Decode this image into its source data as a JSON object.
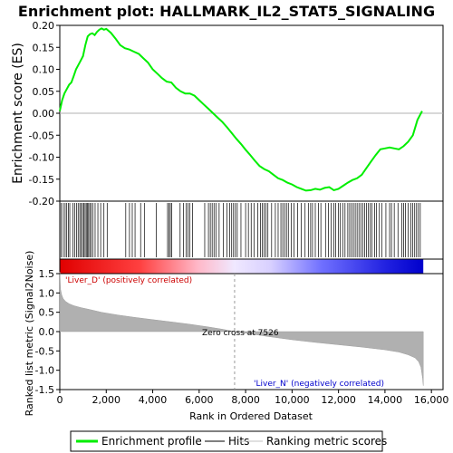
{
  "chart_data": {
    "type": "line",
    "title": "Enrichment plot: HALLMARK_IL2_STAT5_SIGNALING",
    "ylabel_top": "Enrichment score (ES)",
    "ylabel_bottom": "Ranked list metric (Signal2Noise)",
    "xlabel": "Rank in Ordered Dataset",
    "xlim": [
      0,
      16500
    ],
    "x_ticks": [
      0,
      2000,
      4000,
      6000,
      8000,
      10000,
      12000,
      14000,
      16000
    ],
    "x_tick_labels": [
      "0",
      "2,000",
      "4,000",
      "6,000",
      "8,000",
      "10,000",
      "12,000",
      "14,000",
      "16,000"
    ],
    "es_ylim": [
      -0.2,
      0.2
    ],
    "es_ticks": [
      -0.2,
      -0.15,
      -0.1,
      -0.05,
      0.0,
      0.05,
      0.1,
      0.15,
      0.2
    ],
    "es_tick_labels": [
      "-0.20",
      "-0.15",
      "-0.10",
      "-0.05",
      "0.00",
      "0.05",
      "0.10",
      "0.15",
      "0.20"
    ],
    "metric_ylim": [
      -1.5,
      1.5
    ],
    "metric_ticks": [
      -1.5,
      -1.0,
      -0.5,
      0.0,
      0.5,
      1.0,
      1.5
    ],
    "metric_tick_labels": [
      "-1.5",
      "-1.0",
      "-0.5",
      "0.0",
      "0.5",
      "1.0",
      "1.5"
    ],
    "zero_cross_label": "Zero cross at 7526",
    "zero_cross_rank": 7526,
    "total_rank": 15650,
    "pos_label": "'Liver_D' (positively correlated)",
    "neg_label": "'Liver_N' (negatively correlated)",
    "enrichment_profile": {
      "name": "Enrichment profile",
      "color": "#00ee00",
      "x": [
        0,
        100,
        200,
        300,
        400,
        500,
        600,
        700,
        800,
        900,
        1000,
        1100,
        1200,
        1300,
        1400,
        1500,
        1600,
        1700,
        1800,
        1900,
        2000,
        2200,
        2400,
        2600,
        2800,
        3000,
        3200,
        3400,
        3600,
        3800,
        4000,
        4200,
        4400,
        4600,
        4800,
        5000,
        5200,
        5400,
        5600,
        5800,
        6000,
        6200,
        6400,
        6600,
        6800,
        7000,
        7200,
        7400,
        7600,
        7800,
        8000,
        8200,
        8400,
        8600,
        8800,
        9000,
        9200,
        9400,
        9600,
        9800,
        10000,
        10200,
        10400,
        10600,
        10800,
        11000,
        11200,
        11400,
        11600,
        11800,
        12000,
        12200,
        12400,
        12600,
        12800,
        13000,
        13200,
        13400,
        13600,
        13800,
        14000,
        14200,
        14400,
        14600,
        14800,
        15000,
        15200,
        15400,
        15600
      ],
      "y": [
        0.005,
        0.03,
        0.045,
        0.055,
        0.065,
        0.07,
        0.085,
        0.1,
        0.11,
        0.12,
        0.13,
        0.155,
        0.175,
        0.18,
        0.182,
        0.178,
        0.185,
        0.19,
        0.193,
        0.19,
        0.192,
        0.183,
        0.17,
        0.155,
        0.148,
        0.145,
        0.14,
        0.135,
        0.125,
        0.115,
        0.1,
        0.09,
        0.08,
        0.072,
        0.07,
        0.058,
        0.05,
        0.045,
        0.045,
        0.04,
        0.03,
        0.02,
        0.01,
        0.0,
        -0.01,
        -0.02,
        -0.032,
        -0.045,
        -0.058,
        -0.07,
        -0.083,
        -0.095,
        -0.108,
        -0.12,
        -0.127,
        -0.132,
        -0.14,
        -0.148,
        -0.152,
        -0.158,
        -0.162,
        -0.168,
        -0.172,
        -0.176,
        -0.175,
        -0.172,
        -0.174,
        -0.17,
        -0.168,
        -0.175,
        -0.172,
        -0.165,
        -0.158,
        -0.152,
        -0.148,
        -0.14,
        -0.125,
        -0.11,
        -0.095,
        -0.082,
        -0.08,
        -0.078,
        -0.08,
        -0.082,
        -0.075,
        -0.065,
        -0.05,
        -0.015,
        0.005
      ]
    },
    "hits": {
      "name": "Hits",
      "color": "#000000",
      "x": [
        60,
        150,
        230,
        300,
        370,
        430,
        560,
        640,
        720,
        790,
        860,
        920,
        980,
        1040,
        1090,
        1140,
        1190,
        1240,
        1290,
        1350,
        1420,
        1520,
        1640,
        1760,
        1900,
        2040,
        2840,
        3000,
        3120,
        3240,
        3480,
        3640,
        4160,
        4640,
        4700,
        4760,
        4820,
        5180,
        5320,
        5440,
        5520,
        5600,
        5720,
        6240,
        6400,
        6480,
        6560,
        6640,
        6720,
        6860,
        7040,
        7200,
        7320,
        7400,
        7480,
        7560,
        7640,
        7800,
        8000,
        8120,
        8240,
        8360,
        8520,
        8640,
        8720,
        8800,
        8880,
        8960,
        9120,
        9280,
        9400,
        9520,
        9600,
        9680,
        9760,
        9840,
        9960,
        10080,
        10240,
        10400,
        10560,
        10700,
        10800,
        10880,
        11000,
        11140,
        11240,
        11440,
        11560,
        11680,
        11800,
        11880,
        12000,
        12080,
        12180,
        12280,
        12400,
        12480,
        12560,
        12640,
        12720,
        12800,
        12880,
        12960,
        13040,
        13120,
        13200,
        13280,
        13360,
        13440,
        13560,
        13640,
        13760,
        13860,
        14040,
        14200,
        14280,
        14400,
        14560,
        14720,
        14800,
        14880,
        15000,
        15120,
        15200,
        15280,
        15360,
        15440,
        15520
      ]
    },
    "ranking_metric": {
      "name": "Ranking metric scores",
      "color": "#c0c0c0",
      "x": [
        0,
        30,
        80,
        150,
        250,
        400,
        600,
        900,
        1300,
        1800,
        2500,
        3200,
        4000,
        4800,
        5600,
        6400,
        7000,
        7526,
        8000,
        9000,
        10000,
        11000,
        12000,
        13000,
        14000,
        14600,
        15000,
        15300,
        15450,
        15550,
        15620,
        15650
      ],
      "y": [
        1.55,
        1.1,
        0.95,
        0.85,
        0.78,
        0.72,
        0.67,
        0.62,
        0.57,
        0.5,
        0.43,
        0.37,
        0.31,
        0.25,
        0.19,
        0.12,
        0.06,
        0.0,
        -0.04,
        -0.13,
        -0.21,
        -0.28,
        -0.34,
        -0.4,
        -0.47,
        -0.53,
        -0.6,
        -0.68,
        -0.78,
        -0.92,
        -1.2,
        -1.4
      ]
    }
  },
  "legend": {
    "items": [
      {
        "label": "Enrichment profile",
        "color": "#00ee00",
        "kind": "line-thick"
      },
      {
        "label": "Hits",
        "color": "#000000",
        "kind": "line"
      },
      {
        "label": "Ranking metric scores",
        "color": "#c0c0c0",
        "kind": "line"
      }
    ]
  }
}
